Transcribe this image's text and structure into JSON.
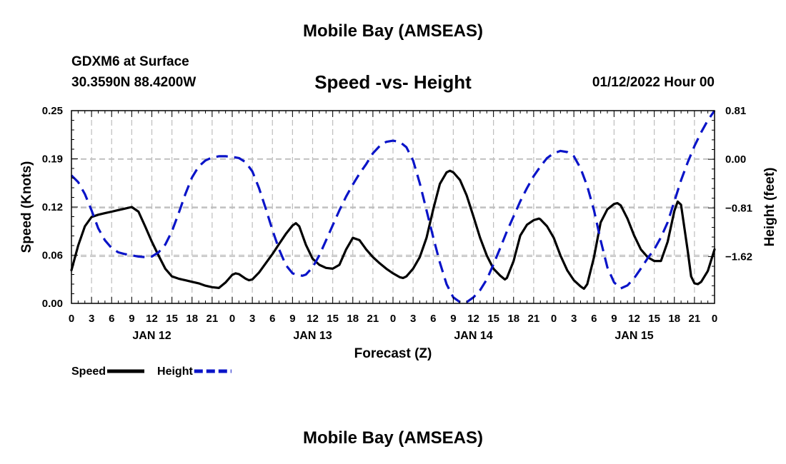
{
  "page": {
    "title": "Mobile Bay (AMSEAS)",
    "station": "GDXM6 at Surface",
    "location": "30.3590N  88.4200W",
    "subtitle": "Speed -vs- Height",
    "datetime": "01/12/2022 Hour 00",
    "bottom_title": "Mobile Bay (AMSEAS)"
  },
  "chart_data": {
    "type": "line",
    "title": "Speed -vs- Height",
    "xlabel": "Forecast (Z)",
    "ylabel_left": "Speed (Knots)",
    "ylabel_right": "Height (feet)",
    "x_tick_labels": [
      "0",
      "3",
      "6",
      "9",
      "12",
      "15",
      "18",
      "21",
      "0",
      "3",
      "6",
      "9",
      "12",
      "15",
      "18",
      "21",
      "0",
      "3",
      "6",
      "9",
      "12",
      "15",
      "18",
      "21",
      "0",
      "3",
      "6",
      "9",
      "12",
      "15",
      "18",
      "21",
      "0"
    ],
    "x_day_labels": [
      {
        "hour": 12,
        "label": "JAN 12"
      },
      {
        "hour": 36,
        "label": "JAN 13"
      },
      {
        "hour": 60,
        "label": "JAN 14"
      },
      {
        "hour": 84,
        "label": "JAN 15"
      }
    ],
    "xlim": [
      0,
      96
    ],
    "ylim_left": [
      0.0,
      0.25
    ],
    "ylim_right": [
      -2.4,
      0.81
    ],
    "left_ticks": [
      {
        "v": 0.0,
        "label": "0.00"
      },
      {
        "v": 0.0625,
        "label": "0.06"
      },
      {
        "v": 0.125,
        "label": "0.12"
      },
      {
        "v": 0.1875,
        "label": "0.19"
      },
      {
        "v": 0.25,
        "label": "0.25"
      }
    ],
    "right_ticks": [
      {
        "v": 0.81,
        "label": "0.81"
      },
      {
        "v": 0.0,
        "label": "0.00"
      },
      {
        "v": -0.81,
        "label": "−0.81"
      },
      {
        "v": -1.62,
        "label": "−1.62"
      }
    ],
    "grid": true,
    "legend_position": "bottom-left",
    "series": [
      {
        "name": "Speed",
        "axis": "left",
        "color": "#000000",
        "dash": "solid",
        "points": [
          [
            0,
            0.043
          ],
          [
            1,
            0.075
          ],
          [
            2,
            0.1
          ],
          [
            3,
            0.112
          ],
          [
            4,
            0.115
          ],
          [
            5,
            0.117
          ],
          [
            6,
            0.119
          ],
          [
            7,
            0.121
          ],
          [
            8,
            0.123
          ],
          [
            9,
            0.125
          ],
          [
            10,
            0.119
          ],
          [
            11,
            0.1
          ],
          [
            12,
            0.08
          ],
          [
            13,
            0.062
          ],
          [
            14,
            0.045
          ],
          [
            15,
            0.035
          ],
          [
            16,
            0.032
          ],
          [
            17,
            0.03
          ],
          [
            18,
            0.028
          ],
          [
            19,
            0.026
          ],
          [
            20,
            0.023
          ],
          [
            21,
            0.021
          ],
          [
            22,
            0.02
          ],
          [
            23,
            0.027
          ],
          [
            24,
            0.037
          ],
          [
            24.5,
            0.039
          ],
          [
            25,
            0.038
          ],
          [
            26,
            0.032
          ],
          [
            26.5,
            0.03
          ],
          [
            27,
            0.031
          ],
          [
            28,
            0.04
          ],
          [
            29,
            0.052
          ],
          [
            30,
            0.064
          ],
          [
            31,
            0.077
          ],
          [
            32,
            0.09
          ],
          [
            33,
            0.101
          ],
          [
            33.5,
            0.104
          ],
          [
            34,
            0.1
          ],
          [
            35,
            0.076
          ],
          [
            36,
            0.058
          ],
          [
            37,
            0.05
          ],
          [
            38,
            0.046
          ],
          [
            39,
            0.045
          ],
          [
            40,
            0.05
          ],
          [
            41,
            0.07
          ],
          [
            42,
            0.085
          ],
          [
            43,
            0.082
          ],
          [
            44,
            0.07
          ],
          [
            45,
            0.06
          ],
          [
            46,
            0.052
          ],
          [
            47,
            0.045
          ],
          [
            48,
            0.039
          ],
          [
            49,
            0.034
          ],
          [
            49.5,
            0.033
          ],
          [
            50,
            0.035
          ],
          [
            51,
            0.045
          ],
          [
            52,
            0.06
          ],
          [
            53,
            0.085
          ],
          [
            54,
            0.122
          ],
          [
            55,
            0.155
          ],
          [
            56,
            0.17
          ],
          [
            56.5,
            0.172
          ],
          [
            57,
            0.17
          ],
          [
            58,
            0.16
          ],
          [
            59,
            0.14
          ],
          [
            60,
            0.113
          ],
          [
            61,
            0.085
          ],
          [
            62,
            0.062
          ],
          [
            63,
            0.045
          ],
          [
            64,
            0.036
          ],
          [
            64.7,
            0.031
          ],
          [
            65,
            0.033
          ],
          [
            66,
            0.055
          ],
          [
            67,
            0.088
          ],
          [
            68,
            0.102
          ],
          [
            69,
            0.108
          ],
          [
            69.8,
            0.11
          ],
          [
            70,
            0.109
          ],
          [
            71,
            0.1
          ],
          [
            72,
            0.085
          ],
          [
            73,
            0.062
          ],
          [
            74,
            0.043
          ],
          [
            75,
            0.03
          ],
          [
            76,
            0.022
          ],
          [
            76.5,
            0.019
          ],
          [
            77,
            0.025
          ],
          [
            78,
            0.06
          ],
          [
            79,
            0.105
          ],
          [
            80,
            0.122
          ],
          [
            81,
            0.129
          ],
          [
            81.5,
            0.13
          ],
          [
            82,
            0.127
          ],
          [
            83,
            0.11
          ],
          [
            84,
            0.088
          ],
          [
            85,
            0.07
          ],
          [
            86,
            0.06
          ],
          [
            87,
            0.055
          ],
          [
            88,
            0.055
          ],
          [
            89,
            0.08
          ],
          [
            90,
            0.12
          ],
          [
            90.5,
            0.132
          ],
          [
            91,
            0.128
          ],
          [
            92,
            0.068
          ],
          [
            92.5,
            0.035
          ],
          [
            93,
            0.026
          ],
          [
            93.5,
            0.025
          ],
          [
            94,
            0.028
          ],
          [
            95,
            0.042
          ],
          [
            96,
            0.07
          ]
        ]
      },
      {
        "name": "Height",
        "axis": "right",
        "color": "#0a14c8",
        "dash": "dashed",
        "points": [
          [
            0,
            -0.27
          ],
          [
            1,
            -0.38
          ],
          [
            2,
            -0.58
          ],
          [
            3,
            -0.85
          ],
          [
            4,
            -1.15
          ],
          [
            5,
            -1.35
          ],
          [
            6,
            -1.48
          ],
          [
            7,
            -1.55
          ],
          [
            8,
            -1.58
          ],
          [
            9,
            -1.6
          ],
          [
            10,
            -1.62
          ],
          [
            11,
            -1.63
          ],
          [
            12,
            -1.62
          ],
          [
            13,
            -1.55
          ],
          [
            14,
            -1.42
          ],
          [
            15,
            -1.2
          ],
          [
            16,
            -0.9
          ],
          [
            17,
            -0.58
          ],
          [
            18,
            -0.3
          ],
          [
            19,
            -0.12
          ],
          [
            20,
            -0.02
          ],
          [
            21,
            0.03
          ],
          [
            22,
            0.05
          ],
          [
            23,
            0.05
          ],
          [
            24,
            0.04
          ],
          [
            25,
            0.02
          ],
          [
            26,
            -0.05
          ],
          [
            27,
            -0.2
          ],
          [
            28,
            -0.48
          ],
          [
            29,
            -0.82
          ],
          [
            30,
            -1.18
          ],
          [
            31,
            -1.5
          ],
          [
            32,
            -1.76
          ],
          [
            33,
            -1.9
          ],
          [
            34,
            -1.93
          ],
          [
            34.5,
            -1.94
          ],
          [
            35,
            -1.92
          ],
          [
            36,
            -1.8
          ],
          [
            37,
            -1.6
          ],
          [
            38,
            -1.35
          ],
          [
            39,
            -1.1
          ],
          [
            40,
            -0.85
          ],
          [
            41,
            -0.62
          ],
          [
            42,
            -0.42
          ],
          [
            43,
            -0.24
          ],
          [
            44,
            -0.08
          ],
          [
            45,
            0.1
          ],
          [
            46,
            0.22
          ],
          [
            47,
            0.29
          ],
          [
            48,
            0.31
          ],
          [
            49,
            0.29
          ],
          [
            50,
            0.2
          ],
          [
            51,
            -0.02
          ],
          [
            52,
            -0.4
          ],
          [
            53,
            -0.85
          ],
          [
            54,
            -1.3
          ],
          [
            55,
            -1.72
          ],
          [
            56,
            -2.08
          ],
          [
            57,
            -2.3
          ],
          [
            58,
            -2.38
          ],
          [
            58.5,
            -2.39
          ],
          [
            59,
            -2.38
          ],
          [
            60,
            -2.3
          ],
          [
            61,
            -2.18
          ],
          [
            62,
            -2.0
          ],
          [
            63,
            -1.75
          ],
          [
            64,
            -1.48
          ],
          [
            65,
            -1.2
          ],
          [
            66,
            -0.95
          ],
          [
            67,
            -0.7
          ],
          [
            68,
            -0.48
          ],
          [
            69,
            -0.28
          ],
          [
            70,
            -0.12
          ],
          [
            71,
            0.02
          ],
          [
            72,
            0.1
          ],
          [
            73,
            0.14
          ],
          [
            74,
            0.12
          ],
          [
            75,
            0.05
          ],
          [
            76,
            -0.15
          ],
          [
            77,
            -0.45
          ],
          [
            78,
            -0.85
          ],
          [
            79,
            -1.35
          ],
          [
            80,
            -1.8
          ],
          [
            81,
            -2.05
          ],
          [
            82,
            -2.15
          ],
          [
            83,
            -2.1
          ],
          [
            84,
            -1.98
          ],
          [
            85,
            -1.82
          ],
          [
            86,
            -1.65
          ],
          [
            87,
            -1.5
          ],
          [
            88,
            -1.3
          ],
          [
            89,
            -1.05
          ],
          [
            90,
            -0.7
          ],
          [
            91,
            -0.35
          ],
          [
            92,
            -0.05
          ],
          [
            93,
            0.22
          ],
          [
            94,
            0.45
          ],
          [
            95,
            0.65
          ],
          [
            96,
            0.81
          ]
        ]
      }
    ]
  }
}
